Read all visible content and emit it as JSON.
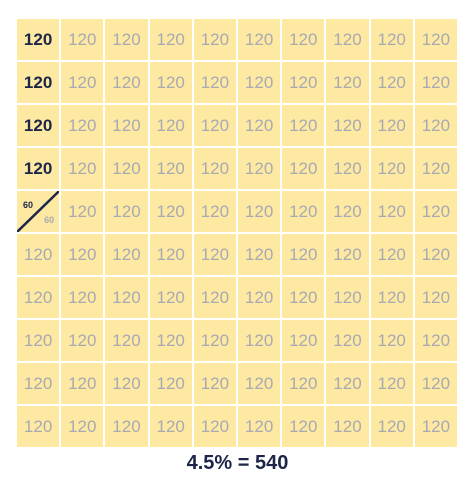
{
  "grid": {
    "cell_value": "120",
    "split_cell": {
      "top": "60",
      "bottom": "60"
    }
  },
  "caption": "4.5% = 540",
  "colors": {
    "cell_background": "#fde9a2",
    "highlight_text": "#1d2548",
    "muted_text": "#a9a9b3"
  }
}
